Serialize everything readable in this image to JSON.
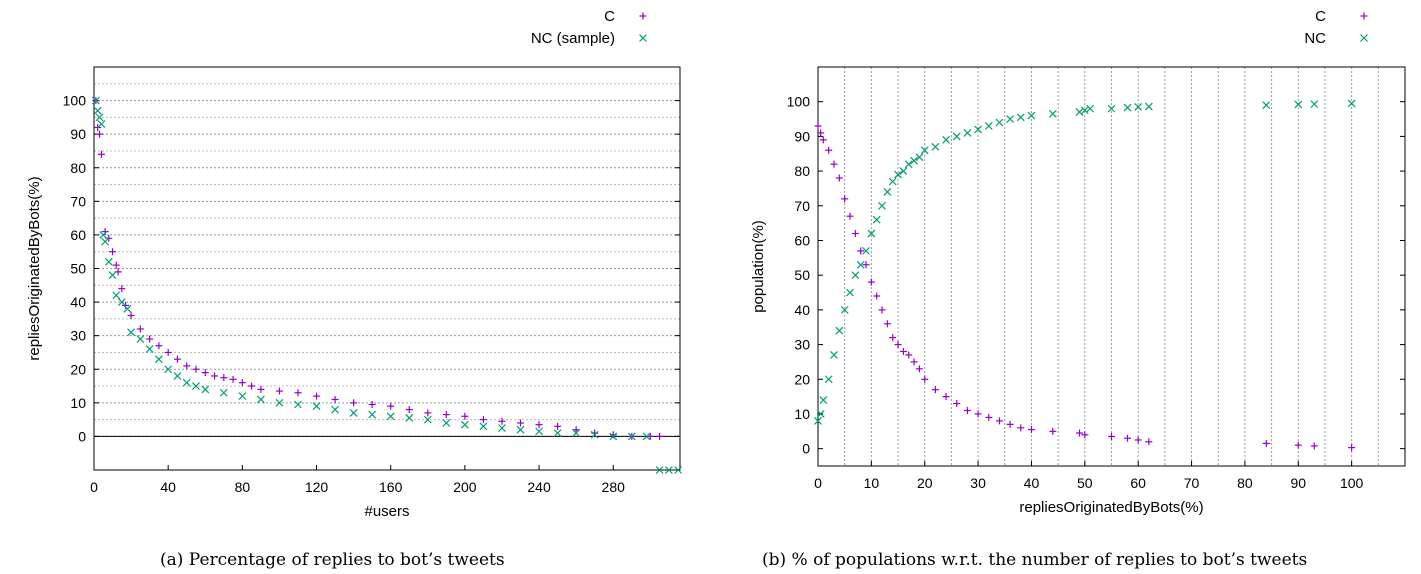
{
  "chart_data": [
    {
      "type": "scatter",
      "title": "",
      "xlabel": "#users",
      "ylabel": "repliesOriginatedByBots(%)",
      "xlim": [
        0,
        316
      ],
      "ylim": [
        -10,
        110
      ],
      "xticks": [
        "0",
        "40",
        "80",
        "120",
        "160",
        "200",
        "240",
        "280"
      ],
      "yticks": [
        "0",
        "10",
        "20",
        "30",
        "40",
        "50",
        "60",
        "70",
        "80",
        "90",
        "100"
      ],
      "grid": "horizontal-dotted",
      "legend": "top-right",
      "series": [
        {
          "name": "C",
          "marker": "+",
          "color": "#9400D3",
          "points": [
            [
              1,
              100
            ],
            [
              2,
              92
            ],
            [
              3,
              90
            ],
            [
              4,
              84
            ],
            [
              6,
              61
            ],
            [
              8,
              59
            ],
            [
              10,
              55
            ],
            [
              12,
              51
            ],
            [
              13,
              49
            ],
            [
              15,
              44
            ],
            [
              17,
              39
            ],
            [
              20,
              36
            ],
            [
              25,
              32
            ],
            [
              30,
              29
            ],
            [
              35,
              27
            ],
            [
              40,
              25
            ],
            [
              45,
              23
            ],
            [
              50,
              21
            ],
            [
              55,
              20
            ],
            [
              60,
              19
            ],
            [
              65,
              18
            ],
            [
              70,
              17.5
            ],
            [
              75,
              17
            ],
            [
              80,
              16
            ],
            [
              85,
              15
            ],
            [
              90,
              14
            ],
            [
              100,
              13.5
            ],
            [
              110,
              13
            ],
            [
              120,
              12
            ],
            [
              130,
              11
            ],
            [
              140,
              10
            ],
            [
              150,
              9.5
            ],
            [
              160,
              9
            ],
            [
              170,
              8
            ],
            [
              180,
              7
            ],
            [
              190,
              6.5
            ],
            [
              200,
              6
            ],
            [
              210,
              5
            ],
            [
              220,
              4.5
            ],
            [
              230,
              4
            ],
            [
              240,
              3.5
            ],
            [
              250,
              3
            ],
            [
              260,
              2
            ],
            [
              270,
              1
            ],
            [
              280,
              0.5
            ],
            [
              290,
              0
            ],
            [
              300,
              0
            ],
            [
              305,
              0
            ]
          ]
        },
        {
          "name": "NC (sample)",
          "marker": "x",
          "color": "#009E73",
          "points": [
            [
              1,
              100
            ],
            [
              2,
              97
            ],
            [
              3,
              95
            ],
            [
              4,
              93
            ],
            [
              5,
              60
            ],
            [
              6,
              58
            ],
            [
              8,
              52
            ],
            [
              10,
              48
            ],
            [
              12,
              42
            ],
            [
              15,
              40
            ],
            [
              18,
              38
            ],
            [
              20,
              31
            ],
            [
              25,
              29
            ],
            [
              30,
              26
            ],
            [
              35,
              23
            ],
            [
              40,
              20
            ],
            [
              45,
              18
            ],
            [
              50,
              16
            ],
            [
              55,
              15
            ],
            [
              60,
              14
            ],
            [
              70,
              13
            ],
            [
              80,
              12
            ],
            [
              90,
              11
            ],
            [
              100,
              10
            ],
            [
              110,
              9.5
            ],
            [
              120,
              9
            ],
            [
              130,
              8
            ],
            [
              140,
              7
            ],
            [
              150,
              6.5
            ],
            [
              160,
              6
            ],
            [
              170,
              5.5
            ],
            [
              180,
              5
            ],
            [
              190,
              4
            ],
            [
              200,
              3.5
            ],
            [
              210,
              3
            ],
            [
              220,
              2.5
            ],
            [
              230,
              2
            ],
            [
              240,
              1.5
            ],
            [
              250,
              1
            ],
            [
              260,
              1
            ],
            [
              270,
              0.5
            ],
            [
              280,
              0
            ],
            [
              290,
              0
            ],
            [
              298,
              0
            ],
            [
              305,
              -10
            ],
            [
              310,
              -10
            ],
            [
              315,
              -10
            ]
          ]
        }
      ]
    },
    {
      "type": "scatter",
      "title": "",
      "xlabel": "repliesOriginatedByBots(%)",
      "ylabel": "population(%)",
      "xlim": [
        0,
        110
      ],
      "ylim": [
        -5,
        110
      ],
      "xticks": [
        "0",
        "10",
        "20",
        "30",
        "40",
        "50",
        "60",
        "70",
        "80",
        "90",
        "100"
      ],
      "yticks": [
        "0",
        "10",
        "20",
        "30",
        "40",
        "50",
        "60",
        "70",
        "80",
        "90",
        "100"
      ],
      "grid": "vertical-dotted-every-5",
      "legend": "top-right",
      "series": [
        {
          "name": "C",
          "marker": "+",
          "color": "#9400D3",
          "points": [
            [
              0,
              93
            ],
            [
              0.5,
              91
            ],
            [
              1,
              89
            ],
            [
              2,
              86
            ],
            [
              3,
              82
            ],
            [
              4,
              78
            ],
            [
              5,
              72
            ],
            [
              6,
              67
            ],
            [
              7,
              62
            ],
            [
              8,
              57
            ],
            [
              9,
              53
            ],
            [
              10,
              48
            ],
            [
              11,
              44
            ],
            [
              12,
              40
            ],
            [
              13,
              36
            ],
            [
              14,
              32
            ],
            [
              15,
              30
            ],
            [
              16,
              28
            ],
            [
              17,
              27
            ],
            [
              18,
              25
            ],
            [
              19,
              23
            ],
            [
              20,
              20
            ],
            [
              22,
              17
            ],
            [
              24,
              15
            ],
            [
              26,
              13
            ],
            [
              28,
              11
            ],
            [
              30,
              10
            ],
            [
              32,
              9
            ],
            [
              34,
              8
            ],
            [
              36,
              7
            ],
            [
              38,
              6
            ],
            [
              40,
              5.5
            ],
            [
              44,
              5
            ],
            [
              49,
              4.5
            ],
            [
              50,
              4
            ],
            [
              55,
              3.5
            ],
            [
              58,
              3
            ],
            [
              60,
              2.5
            ],
            [
              62,
              2
            ],
            [
              84,
              1.5
            ],
            [
              90,
              1
            ],
            [
              93,
              0.8
            ],
            [
              100,
              0.3
            ]
          ]
        },
        {
          "name": "NC",
          "marker": "x",
          "color": "#009E73",
          "points": [
            [
              0,
              8
            ],
            [
              0.5,
              10
            ],
            [
              1,
              14
            ],
            [
              2,
              20
            ],
            [
              3,
              27
            ],
            [
              4,
              34
            ],
            [
              5,
              40
            ],
            [
              6,
              45
            ],
            [
              7,
              50
            ],
            [
              8,
              53
            ],
            [
              9,
              57
            ],
            [
              10,
              62
            ],
            [
              11,
              66
            ],
            [
              12,
              70
            ],
            [
              13,
              74
            ],
            [
              14,
              77
            ],
            [
              15,
              79
            ],
            [
              16,
              80
            ],
            [
              17,
              82
            ],
            [
              18,
              83
            ],
            [
              19,
              84
            ],
            [
              20,
              86
            ],
            [
              22,
              87
            ],
            [
              24,
              89
            ],
            [
              26,
              90
            ],
            [
              28,
              91
            ],
            [
              30,
              92
            ],
            [
              32,
              93
            ],
            [
              34,
              94
            ],
            [
              36,
              95
            ],
            [
              38,
              95.5
            ],
            [
              40,
              96
            ],
            [
              44,
              96.5
            ],
            [
              49,
              97
            ],
            [
              50,
              97.5
            ],
            [
              51,
              98
            ],
            [
              55,
              98
            ],
            [
              58,
              98.3
            ],
            [
              60,
              98.5
            ],
            [
              62,
              98.6
            ],
            [
              84,
              99
            ],
            [
              90,
              99.2
            ],
            [
              93,
              99.3
            ],
            [
              100,
              99.5
            ]
          ]
        }
      ]
    }
  ],
  "captions": {
    "a": "(a) Percentage of replies to bot’s tweets",
    "b": "(b) % of populations w.r.t. the number of replies to bot’s tweets"
  }
}
